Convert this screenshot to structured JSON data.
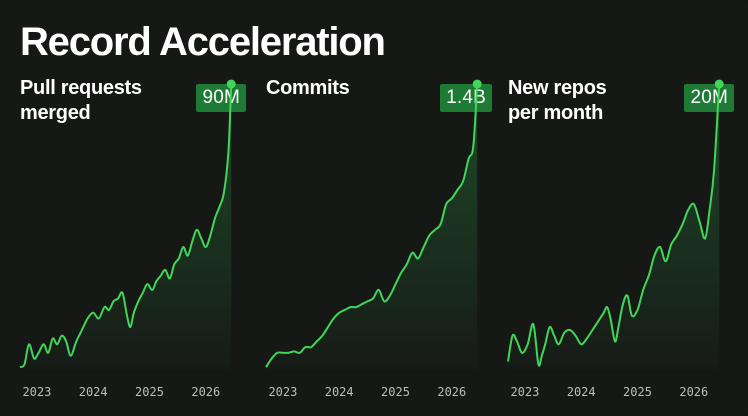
{
  "title": "Record Acceleration",
  "colors": {
    "line": "#41d65a",
    "badge": "#1f7a36",
    "background": "#161816"
  },
  "chart_data": [
    {
      "type": "area",
      "title": "Pull requests merged",
      "title_lines": [
        "Pull requests",
        "merged"
      ],
      "badge": "90M",
      "xlim": [
        2022.7,
        2026.5
      ],
      "ylim": [
        0,
        100
      ],
      "x_ticks": [
        2023,
        2024,
        2025,
        2026
      ],
      "x_tick_labels": [
        "2023",
        "2024",
        "2025",
        "2026"
      ],
      "x": [
        2022.7,
        2022.78,
        2022.86,
        2022.95,
        2023.03,
        2023.12,
        2023.2,
        2023.28,
        2023.36,
        2023.44,
        2023.52,
        2023.6,
        2023.7,
        2023.8,
        2023.9,
        2024.0,
        2024.1,
        2024.2,
        2024.28,
        2024.36,
        2024.44,
        2024.52,
        2024.6,
        2024.66,
        2024.72,
        2024.8,
        2024.88,
        2024.96,
        2025.05,
        2025.12,
        2025.2,
        2025.28,
        2025.36,
        2025.44,
        2025.52,
        2025.6,
        2025.68,
        2025.76,
        2025.84,
        2025.92,
        2026.0,
        2026.08,
        2026.16,
        2026.24,
        2026.32,
        2026.4,
        2026.45
      ],
      "values": [
        1,
        2,
        9,
        4,
        6,
        9,
        6,
        11,
        9,
        12,
        10,
        5,
        10,
        14,
        18,
        20,
        18,
        22,
        21,
        24,
        25,
        27,
        19,
        15,
        20,
        24,
        27,
        30,
        28,
        31,
        33,
        35,
        32,
        37,
        39,
        43,
        40,
        45,
        49,
        46,
        43,
        47,
        53,
        57,
        62,
        76,
        100
      ]
    },
    {
      "type": "area",
      "title": "Commits",
      "title_lines": [
        "Commits"
      ],
      "badge": "1.4B",
      "xlim": [
        2022.7,
        2026.5
      ],
      "ylim": [
        0,
        100
      ],
      "x_ticks": [
        2023,
        2024,
        2025,
        2026
      ],
      "x_tick_labels": [
        "2023",
        "2024",
        "2025",
        "2026"
      ],
      "x": [
        2022.7,
        2022.8,
        2022.9,
        2023.0,
        2023.1,
        2023.2,
        2023.3,
        2023.4,
        2023.5,
        2023.6,
        2023.7,
        2023.8,
        2023.9,
        2024.0,
        2024.1,
        2024.2,
        2024.3,
        2024.4,
        2024.5,
        2024.6,
        2024.7,
        2024.8,
        2024.9,
        2025.0,
        2025.1,
        2025.2,
        2025.3,
        2025.4,
        2025.5,
        2025.6,
        2025.7,
        2025.8,
        2025.9,
        2026.0,
        2026.1,
        2026.2,
        2026.3,
        2026.38,
        2026.45
      ],
      "values": [
        1,
        4,
        6,
        6,
        6,
        6.5,
        6,
        8,
        8,
        10,
        12,
        15,
        18,
        20,
        21,
        22,
        22,
        23,
        24,
        25,
        28,
        24,
        26,
        30,
        34,
        37,
        41,
        39,
        43,
        47,
        49,
        51,
        58,
        60,
        63,
        66,
        74,
        78,
        100
      ]
    },
    {
      "type": "area",
      "title": "New repos per month",
      "title_lines": [
        "New repos",
        "per month"
      ],
      "badge": "20M",
      "xlim": [
        2022.7,
        2026.5
      ],
      "ylim": [
        0,
        100
      ],
      "x_ticks": [
        2023,
        2024,
        2025,
        2026
      ],
      "x_tick_labels": [
        "2023",
        "2024",
        "2025",
        "2026"
      ],
      "x": [
        2022.7,
        2022.78,
        2022.86,
        2022.95,
        2023.05,
        2023.15,
        2023.24,
        2023.3,
        2023.36,
        2023.44,
        2023.52,
        2023.6,
        2023.7,
        2023.8,
        2023.9,
        2024.0,
        2024.1,
        2024.2,
        2024.3,
        2024.4,
        2024.46,
        2024.52,
        2024.6,
        2024.66,
        2024.74,
        2024.82,
        2024.9,
        2025.0,
        2025.1,
        2025.2,
        2025.3,
        2025.4,
        2025.5,
        2025.6,
        2025.7,
        2025.8,
        2025.9,
        2026.0,
        2026.1,
        2026.2,
        2026.28,
        2026.36,
        2026.45
      ],
      "values": [
        3,
        12,
        10,
        6,
        9,
        16,
        2,
        5,
        9,
        15,
        12,
        9,
        13,
        14,
        12,
        9,
        11,
        14,
        17,
        20,
        22,
        18,
        10,
        15,
        23,
        26,
        19,
        21,
        28,
        33,
        40,
        43,
        38,
        44,
        47,
        51,
        56,
        58,
        52,
        46,
        56,
        70,
        100
      ]
    }
  ]
}
